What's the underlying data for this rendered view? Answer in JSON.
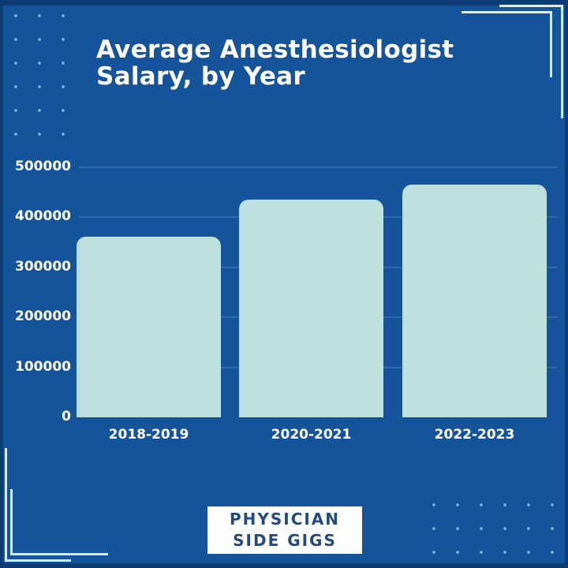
{
  "title": {
    "line1": "Average Anesthesiologist",
    "line2": "Salary, by Year"
  },
  "chart_data": {
    "type": "bar",
    "title": "Average Anesthesiologist Salary, by Year",
    "categories": [
      "2018-2019",
      "2020-2021",
      "2022-2023"
    ],
    "values": [
      360000,
      435000,
      465000
    ],
    "xlabel": "",
    "ylabel": "",
    "ylim": [
      0,
      500000
    ],
    "ytick_step": 100000,
    "ytick_labels": [
      "0",
      "100000",
      "200000",
      "300000",
      "400000",
      "500000"
    ],
    "grid": true,
    "legend_position": "none",
    "bar_color": "#bde0de",
    "axis_label_color": "#ffffff"
  },
  "badge": {
    "line1": "PHYSICIAN",
    "line2": "SIDE GIGS"
  },
  "style": {
    "background": "#15549b",
    "edge_shade": "#0d3a6e",
    "dot_color": "#7fb3e2",
    "bracket_color": "#d8edf2",
    "title_color": "#ffffff",
    "badge_background": "#fdfdfd",
    "badge_text_color": "#24497c"
  }
}
